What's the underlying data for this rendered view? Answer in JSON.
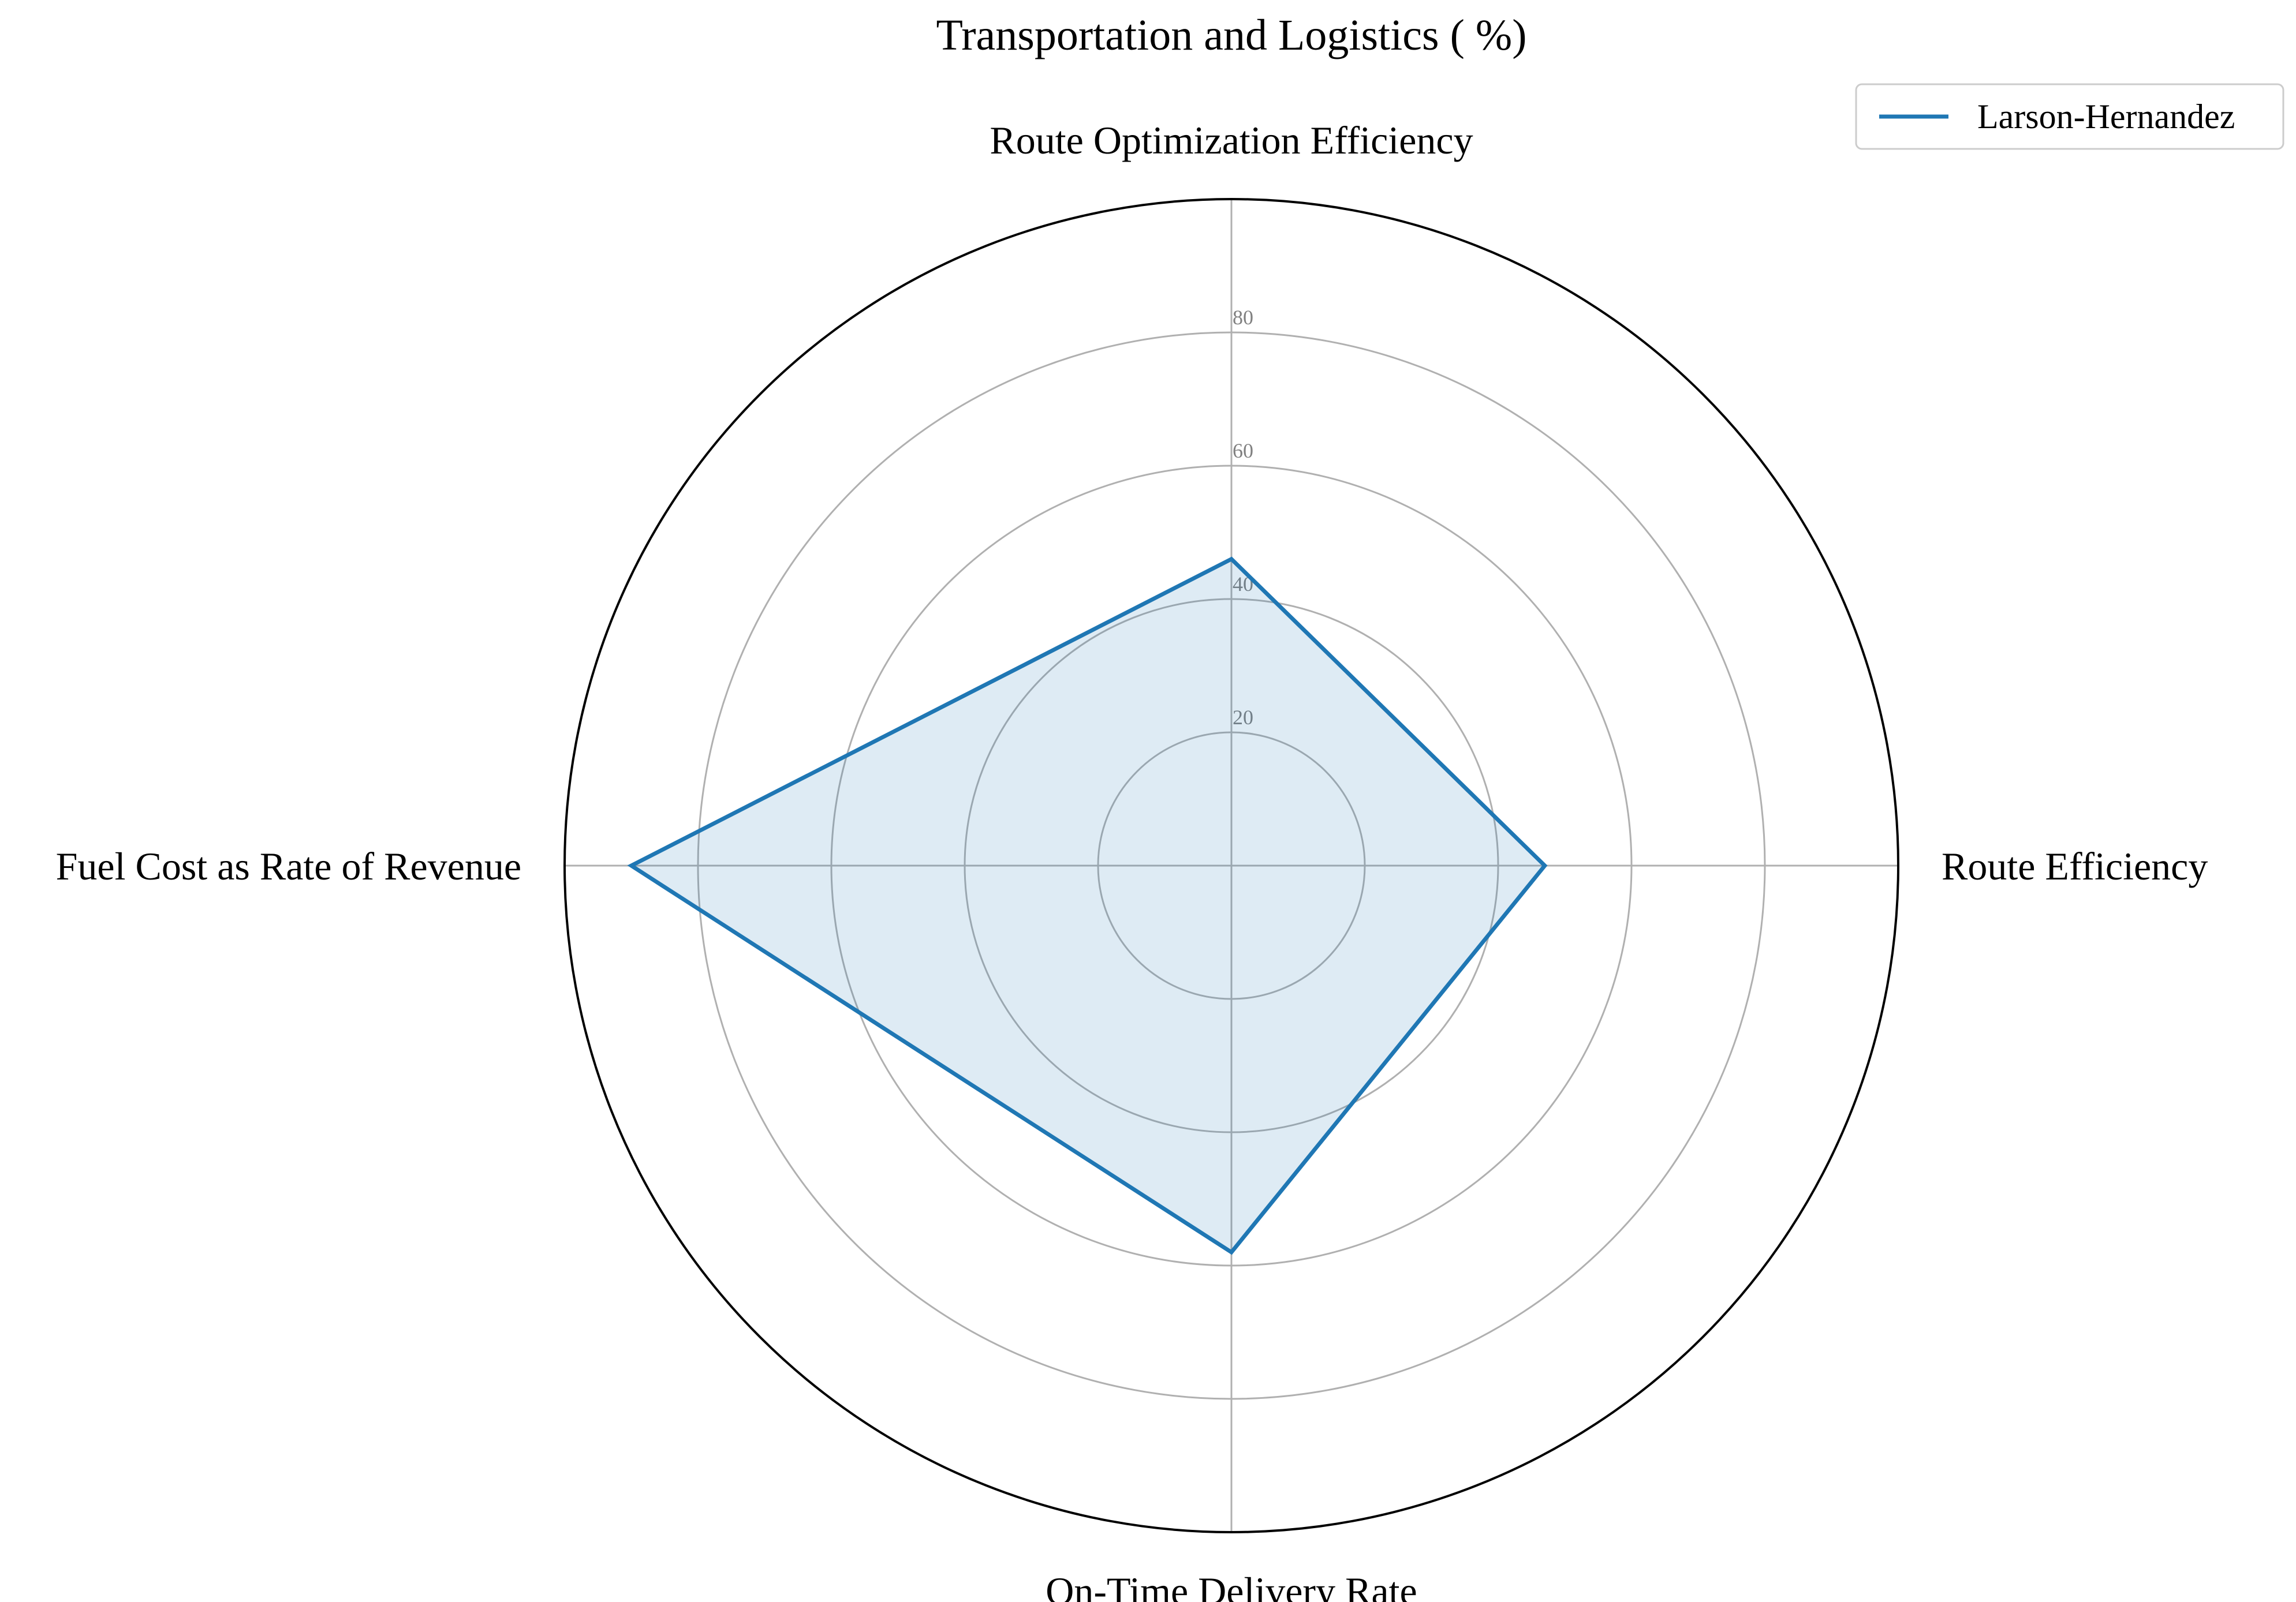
{
  "chart_data": {
    "type": "radar",
    "title": "Transportation and Logistics ( %)",
    "categories": [
      "Route Optimization Efficiency",
      "Route Efficiency",
      "On-Time Delivery Rate",
      "Fuel Cost as Rate of Revenue"
    ],
    "series": [
      {
        "name": "Larson-Hernandez",
        "values": [
          46,
          47,
          58,
          90
        ],
        "color": "#1f77b4"
      }
    ],
    "rlim": [
      0,
      100
    ],
    "rticks": [
      20,
      40,
      60,
      80
    ],
    "rtick_labels": [
      "20",
      "40",
      "60",
      "80"
    ],
    "grid": true,
    "legend_position": "top-right"
  },
  "colors": {
    "grid": "#b0b0b0",
    "outer_frame": "#000000",
    "fill_opacity": 0.15
  }
}
